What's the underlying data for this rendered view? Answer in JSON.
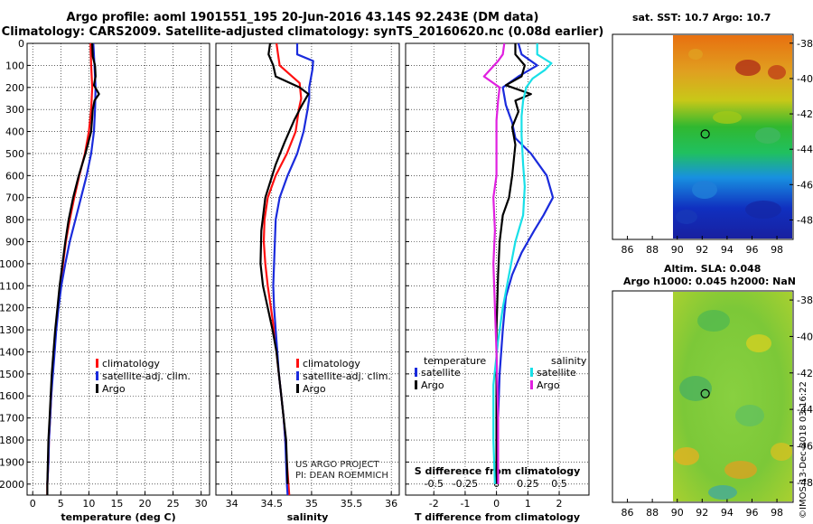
{
  "header": {
    "title_line1": "Argo profile: aoml 1901551_195 20-Jun-2016 43.14S 92.243E (DM data)",
    "title_line2": "Climatology: CARS2009. Satellite-adjusted climatology: synTS_20160620.nc (0.08d earlier)"
  },
  "colors": {
    "climatology": "#ff1010",
    "satellite": "#1a2bdc",
    "argo": "#000000",
    "sat_salinity": "#18e0e8",
    "argo_salinity": "#e020e0"
  },
  "depth_axis": {
    "ylim": [
      0,
      2050
    ],
    "ticks": [
      0,
      100,
      200,
      300,
      400,
      500,
      600,
      700,
      800,
      900,
      1000,
      1100,
      1200,
      1300,
      1400,
      1500,
      1600,
      1700,
      1800,
      1900,
      2000
    ],
    "tick_labels": [
      "0",
      "100",
      "200",
      "300",
      "400",
      "500",
      "600",
      "700",
      "800",
      "900",
      "1000",
      "1100",
      "1200",
      "1300",
      "1400",
      "1500",
      "1600",
      "1700",
      "1800",
      "1900",
      "2000"
    ]
  },
  "chart_data": [
    {
      "type": "line",
      "xlabel": "temperature (deg C)",
      "xlim": [
        -1,
        31.5
      ],
      "xticks": [
        0,
        5,
        10,
        15,
        20,
        25,
        30
      ],
      "xtick_labels": [
        "0",
        "5",
        "10",
        "15",
        "20",
        "25",
        "30"
      ],
      "legend": {
        "location": "bottom-center",
        "labels": [
          "climatology",
          "satellite-adj. clim.",
          "Argo"
        ]
      },
      "series": [
        {
          "name": "climatology",
          "color": "#ff1010",
          "points": [
            [
              10.3,
              0
            ],
            [
              10.4,
              100
            ],
            [
              10.6,
              200
            ],
            [
              10.4,
              300
            ],
            [
              10.0,
              400
            ],
            [
              9.3,
              500
            ],
            [
              8.3,
              600
            ],
            [
              7.4,
              700
            ],
            [
              6.6,
              800
            ],
            [
              5.9,
              900
            ],
            [
              5.4,
              1000
            ],
            [
              4.9,
              1100
            ],
            [
              4.5,
              1200
            ],
            [
              4.1,
              1300
            ],
            [
              3.8,
              1400
            ],
            [
              3.5,
              1500
            ],
            [
              3.3,
              1600
            ],
            [
              3.1,
              1700
            ],
            [
              2.9,
              1800
            ],
            [
              2.8,
              1900
            ],
            [
              2.6,
              2000
            ],
            [
              2.6,
              2050
            ]
          ]
        },
        {
          "name": "satellite-adj. clim.",
          "color": "#1a2bdc",
          "points": [
            [
              10.8,
              0
            ],
            [
              11.0,
              100
            ],
            [
              11.2,
              200
            ],
            [
              11.1,
              300
            ],
            [
              10.9,
              400
            ],
            [
              10.4,
              500
            ],
            [
              9.6,
              600
            ],
            [
              8.6,
              700
            ],
            [
              7.6,
              800
            ],
            [
              6.6,
              900
            ],
            [
              5.8,
              1000
            ],
            [
              5.1,
              1100
            ],
            [
              4.6,
              1200
            ],
            [
              4.2,
              1300
            ],
            [
              3.9,
              1400
            ],
            [
              3.6,
              1500
            ],
            [
              3.3,
              1600
            ],
            [
              3.1,
              1700
            ],
            [
              2.9,
              1800
            ],
            [
              2.8,
              1900
            ],
            [
              2.6,
              2000
            ]
          ]
        },
        {
          "name": "Argo",
          "color": "#000000",
          "points": [
            [
              10.6,
              0
            ],
            [
              10.7,
              60
            ],
            [
              11.1,
              100
            ],
            [
              11.2,
              150
            ],
            [
              10.9,
              190
            ],
            [
              11.8,
              230
            ],
            [
              11.0,
              260
            ],
            [
              10.7,
              300
            ],
            [
              10.4,
              400
            ],
            [
              9.4,
              500
            ],
            [
              8.2,
              600
            ],
            [
              7.2,
              700
            ],
            [
              6.4,
              800
            ],
            [
              5.8,
              900
            ],
            [
              5.3,
              1000
            ],
            [
              4.8,
              1100
            ],
            [
              4.4,
              1200
            ],
            [
              4.0,
              1300
            ],
            [
              3.7,
              1400
            ],
            [
              3.4,
              1500
            ],
            [
              3.2,
              1600
            ],
            [
              3.0,
              1700
            ],
            [
              2.8,
              1800
            ],
            [
              2.7,
              1900
            ],
            [
              2.6,
              2000
            ],
            [
              2.6,
              2050
            ]
          ]
        }
      ]
    },
    {
      "type": "line",
      "xlabel": "salinity",
      "xlim": [
        33.8,
        36.1
      ],
      "xticks": [
        34,
        34.5,
        35,
        35.5,
        36
      ],
      "xtick_labels": [
        "34",
        "34.5",
        "35",
        "35.5",
        "36"
      ],
      "legend": {
        "location": "bottom-center",
        "labels": [
          "climatology",
          "satellite-adj. clim.",
          "Argo"
        ]
      },
      "annotations": [
        "US ARGO PROJECT",
        "PI: DEAN ROEMMICH"
      ],
      "series": [
        {
          "name": "climatology",
          "color": "#ff1010",
          "points": [
            [
              34.56,
              0
            ],
            [
              34.58,
              50
            ],
            [
              34.6,
              100
            ],
            [
              34.85,
              180
            ],
            [
              34.87,
              250
            ],
            [
              34.84,
              300
            ],
            [
              34.8,
              400
            ],
            [
              34.69,
              500
            ],
            [
              34.55,
              600
            ],
            [
              34.45,
              700
            ],
            [
              34.41,
              800
            ],
            [
              34.4,
              900
            ],
            [
              34.42,
              1000
            ],
            [
              34.45,
              1100
            ],
            [
              34.49,
              1200
            ],
            [
              34.53,
              1300
            ],
            [
              34.56,
              1400
            ],
            [
              34.59,
              1500
            ],
            [
              34.62,
              1600
            ],
            [
              34.65,
              1700
            ],
            [
              34.67,
              1800
            ],
            [
              34.69,
              1900
            ],
            [
              34.71,
              2000
            ],
            [
              34.72,
              2050
            ]
          ]
        },
        {
          "name": "satellite-adj. clim.",
          "color": "#1a2bdc",
          "points": [
            [
              34.82,
              0
            ],
            [
              34.82,
              50
            ],
            [
              35.02,
              80
            ],
            [
              35.01,
              120
            ],
            [
              34.97,
              200
            ],
            [
              34.97,
              250
            ],
            [
              34.95,
              300
            ],
            [
              34.9,
              400
            ],
            [
              34.82,
              500
            ],
            [
              34.7,
              600
            ],
            [
              34.6,
              700
            ],
            [
              34.55,
              800
            ],
            [
              34.54,
              900
            ],
            [
              34.53,
              1000
            ],
            [
              34.52,
              1100
            ],
            [
              34.53,
              1200
            ],
            [
              34.55,
              1300
            ],
            [
              34.57,
              1400
            ],
            [
              34.59,
              1500
            ],
            [
              34.62,
              1600
            ],
            [
              34.65,
              1700
            ],
            [
              34.67,
              1800
            ],
            [
              34.68,
              1900
            ],
            [
              34.69,
              2000
            ],
            [
              34.7,
              2050
            ]
          ]
        },
        {
          "name": "Argo",
          "color": "#000000",
          "points": [
            [
              34.48,
              0
            ],
            [
              34.46,
              50
            ],
            [
              34.52,
              100
            ],
            [
              34.55,
              150
            ],
            [
              34.85,
              200
            ],
            [
              34.96,
              230
            ],
            [
              34.88,
              280
            ],
            [
              34.78,
              350
            ],
            [
              34.66,
              450
            ],
            [
              34.55,
              550
            ],
            [
              34.42,
              700
            ],
            [
              34.37,
              850
            ],
            [
              34.36,
              1000
            ],
            [
              34.39,
              1100
            ],
            [
              34.45,
              1200
            ],
            [
              34.51,
              1300
            ],
            [
              34.56,
              1400
            ],
            [
              34.59,
              1500
            ],
            [
              34.62,
              1600
            ],
            [
              34.65,
              1700
            ],
            [
              34.68,
              1800
            ],
            [
              34.69,
              1900
            ],
            [
              34.7,
              2000
            ]
          ]
        }
      ]
    },
    {
      "type": "line",
      "xlabel": "T difference from climatology",
      "xlabel_top": "S difference from climatology",
      "xlim": [
        -2.9,
        2.95
      ],
      "xticks": [
        -2,
        -1,
        0,
        1,
        2
      ],
      "xtick_labels": [
        "-2",
        "-1",
        "0",
        "1",
        "2"
      ],
      "xticks_top": [
        -0.5,
        -0.25,
        0,
        0.25,
        0.5
      ],
      "xtick_labels_top": [
        "-0.5",
        "-0.25",
        "0",
        "0.25",
        "0.5"
      ],
      "legend": {
        "temperature_heading": "temperature",
        "salinity_heading": "salinity",
        "labels": [
          "satellite",
          "Argo",
          "satellite",
          "Argo"
        ]
      },
      "series": [
        {
          "name": "temperature satellite",
          "color": "#1a2bdc",
          "points": [
            [
              0.7,
              0
            ],
            [
              0.8,
              50
            ],
            [
              1.3,
              100
            ],
            [
              0.7,
              150
            ],
            [
              0.2,
              200
            ],
            [
              0.3,
              280
            ],
            [
              0.5,
              360
            ],
            [
              0.6,
              430
            ],
            [
              1.1,
              500
            ],
            [
              1.6,
              600
            ],
            [
              1.8,
              700
            ],
            [
              1.5,
              780
            ],
            [
              1.2,
              850
            ],
            [
              0.8,
              950
            ],
            [
              0.5,
              1050
            ],
            [
              0.3,
              1150
            ],
            [
              0.2,
              1300
            ],
            [
              0.1,
              1500
            ],
            [
              0.05,
              1700
            ],
            [
              0.05,
              1900
            ],
            [
              0.05,
              2000
            ]
          ]
        },
        {
          "name": "temperature Argo",
          "color": "#000000",
          "points": [
            [
              0.6,
              0
            ],
            [
              0.6,
              50
            ],
            [
              0.9,
              100
            ],
            [
              0.8,
              150
            ],
            [
              0.3,
              190
            ],
            [
              1.1,
              230
            ],
            [
              0.6,
              260
            ],
            [
              0.7,
              310
            ],
            [
              0.5,
              380
            ],
            [
              0.6,
              460
            ],
            [
              0.5,
              600
            ],
            [
              0.4,
              700
            ],
            [
              0.2,
              780
            ],
            [
              0.1,
              900
            ],
            [
              0.05,
              1050
            ],
            [
              0.0,
              1300
            ],
            [
              0.0,
              1600
            ],
            [
              0.0,
              1900
            ],
            [
              0.0,
              2000
            ]
          ]
        },
        {
          "name": "salinity satellite",
          "color": "#18e0e8",
          "points": [
            [
              1.3,
              0
            ],
            [
              1.3,
              50
            ],
            [
              1.75,
              90
            ],
            [
              1.55,
              120
            ],
            [
              1.15,
              160
            ],
            [
              0.95,
              200
            ],
            [
              0.85,
              260
            ],
            [
              0.8,
              330
            ],
            [
              0.8,
              420
            ],
            [
              0.85,
              550
            ],
            [
              0.9,
              650
            ],
            [
              0.85,
              780
            ],
            [
              0.6,
              900
            ],
            [
              0.4,
              1050
            ],
            [
              0.2,
              1200
            ],
            [
              0.05,
              1350
            ],
            [
              -0.1,
              1550
            ],
            [
              -0.1,
              1800
            ],
            [
              -0.05,
              2000
            ]
          ]
        },
        {
          "name": "salinity Argo",
          "color": "#e020e0",
          "points": [
            [
              0.25,
              0
            ],
            [
              0.2,
              50
            ],
            [
              0.05,
              80
            ],
            [
              -0.4,
              150
            ],
            [
              0.1,
              200
            ],
            [
              0.05,
              260
            ],
            [
              0.0,
              350
            ],
            [
              0.0,
              500
            ],
            [
              0.0,
              600
            ],
            [
              -0.1,
              700
            ],
            [
              -0.05,
              850
            ],
            [
              -0.1,
              1000
            ],
            [
              -0.05,
              1200
            ],
            [
              0.0,
              1400
            ],
            [
              0.05,
              1700
            ],
            [
              0.05,
              2000
            ]
          ]
        }
      ]
    }
  ],
  "maps": {
    "sst_title": "sat. SST: 10.7 Argo: 10.7",
    "sla_title_line1": "Altim. SLA: 0.048",
    "sla_title_line2": "Argo h1000: 0.045 h2000: NaN",
    "lat_ticks": [
      "-38",
      "-40",
      "-42",
      "-44",
      "-46",
      "-48"
    ],
    "lon_ticks": [
      "86",
      "88",
      "90",
      "92",
      "94",
      "96",
      "98"
    ],
    "argo_position": {
      "lon": 92.243,
      "lat": -43.14
    }
  },
  "footer": {
    "imos_stamp": "©IMOS 13-Dec-2018 03:16:22"
  }
}
